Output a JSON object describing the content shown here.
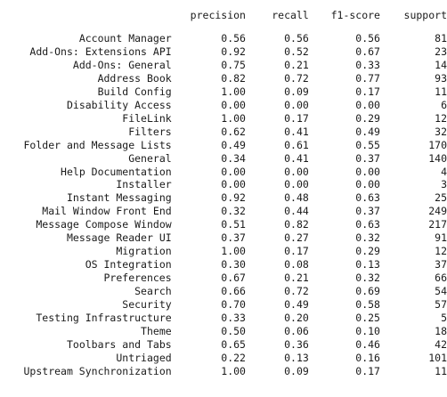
{
  "columns": [
    "precision",
    "recall",
    "f1-score",
    "support"
  ],
  "rows": [
    {
      "label": "Account Manager",
      "precision": "0.56",
      "recall": "0.56",
      "f1": "0.56",
      "support": "81"
    },
    {
      "label": "Add-Ons: Extensions API",
      "precision": "0.92",
      "recall": "0.52",
      "f1": "0.67",
      "support": "23"
    },
    {
      "label": "Add-Ons: General",
      "precision": "0.75",
      "recall": "0.21",
      "f1": "0.33",
      "support": "14"
    },
    {
      "label": "Address Book",
      "precision": "0.82",
      "recall": "0.72",
      "f1": "0.77",
      "support": "93"
    },
    {
      "label": "Build Config",
      "precision": "1.00",
      "recall": "0.09",
      "f1": "0.17",
      "support": "11"
    },
    {
      "label": "Disability Access",
      "precision": "0.00",
      "recall": "0.00",
      "f1": "0.00",
      "support": "6"
    },
    {
      "label": "FileLink",
      "precision": "1.00",
      "recall": "0.17",
      "f1": "0.29",
      "support": "12"
    },
    {
      "label": "Filters",
      "precision": "0.62",
      "recall": "0.41",
      "f1": "0.49",
      "support": "32"
    },
    {
      "label": "Folder and Message Lists",
      "precision": "0.49",
      "recall": "0.61",
      "f1": "0.55",
      "support": "170"
    },
    {
      "label": "General",
      "precision": "0.34",
      "recall": "0.41",
      "f1": "0.37",
      "support": "140"
    },
    {
      "label": "Help Documentation",
      "precision": "0.00",
      "recall": "0.00",
      "f1": "0.00",
      "support": "4"
    },
    {
      "label": "Installer",
      "precision": "0.00",
      "recall": "0.00",
      "f1": "0.00",
      "support": "3"
    },
    {
      "label": "Instant Messaging",
      "precision": "0.92",
      "recall": "0.48",
      "f1": "0.63",
      "support": "25"
    },
    {
      "label": "Mail Window Front End",
      "precision": "0.32",
      "recall": "0.44",
      "f1": "0.37",
      "support": "249"
    },
    {
      "label": "Message Compose Window",
      "precision": "0.51",
      "recall": "0.82",
      "f1": "0.63",
      "support": "217"
    },
    {
      "label": "Message Reader UI",
      "precision": "0.37",
      "recall": "0.27",
      "f1": "0.32",
      "support": "91"
    },
    {
      "label": "Migration",
      "precision": "1.00",
      "recall": "0.17",
      "f1": "0.29",
      "support": "12"
    },
    {
      "label": "OS Integration",
      "precision": "0.30",
      "recall": "0.08",
      "f1": "0.13",
      "support": "37"
    },
    {
      "label": "Preferences",
      "precision": "0.67",
      "recall": "0.21",
      "f1": "0.32",
      "support": "66"
    },
    {
      "label": "Search",
      "precision": "0.66",
      "recall": "0.72",
      "f1": "0.69",
      "support": "54"
    },
    {
      "label": "Security",
      "precision": "0.70",
      "recall": "0.49",
      "f1": "0.58",
      "support": "57"
    },
    {
      "label": "Testing Infrastructure",
      "precision": "0.33",
      "recall": "0.20",
      "f1": "0.25",
      "support": "5"
    },
    {
      "label": "Theme",
      "precision": "0.50",
      "recall": "0.06",
      "f1": "0.10",
      "support": "18"
    },
    {
      "label": "Toolbars and Tabs",
      "precision": "0.65",
      "recall": "0.36",
      "f1": "0.46",
      "support": "42"
    },
    {
      "label": "Untriaged",
      "precision": "0.22",
      "recall": "0.13",
      "f1": "0.16",
      "support": "101"
    },
    {
      "label": "Upstream Synchronization",
      "precision": "1.00",
      "recall": "0.09",
      "f1": "0.17",
      "support": "11"
    }
  ]
}
